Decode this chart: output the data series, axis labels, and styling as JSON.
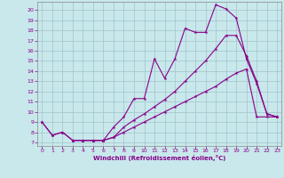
{
  "xlabel": "Windchill (Refroidissement éolien,°C)",
  "bg_color": "#c8e8ec",
  "line_color": "#880088",
  "grid_color": "#a0c4c8",
  "xlim_min": -0.5,
  "xlim_max": 23.4,
  "ylim_min": 6.65,
  "ylim_max": 20.8,
  "yticks": [
    7,
    8,
    9,
    10,
    11,
    12,
    13,
    14,
    15,
    16,
    17,
    18,
    19,
    20
  ],
  "xticks": [
    0,
    1,
    2,
    3,
    4,
    5,
    6,
    7,
    8,
    9,
    10,
    11,
    12,
    13,
    14,
    15,
    16,
    17,
    18,
    19,
    20,
    21,
    22,
    23
  ],
  "line1_x": [
    0,
    1,
    2,
    3,
    4,
    5,
    6,
    7,
    8,
    9,
    10,
    11,
    12,
    13,
    14,
    15,
    16,
    17,
    18,
    19,
    20,
    21,
    22,
    23
  ],
  "line1_y": [
    9.0,
    7.7,
    8.0,
    7.2,
    7.2,
    7.2,
    7.2,
    8.5,
    9.5,
    11.3,
    11.3,
    15.2,
    13.3,
    15.2,
    18.2,
    17.8,
    17.8,
    20.5,
    20.1,
    19.2,
    15.2,
    12.8,
    9.8,
    9.5
  ],
  "line2_x": [
    0,
    1,
    2,
    3,
    4,
    5,
    6,
    7,
    8,
    9,
    10,
    11,
    12,
    13,
    14,
    15,
    16,
    17,
    18,
    19,
    20,
    21,
    22,
    23
  ],
  "line2_y": [
    9.0,
    7.7,
    8.0,
    7.2,
    7.2,
    7.2,
    7.2,
    7.5,
    8.5,
    9.2,
    9.8,
    10.5,
    11.2,
    12.0,
    13.0,
    14.0,
    15.0,
    16.2,
    17.5,
    17.5,
    15.5,
    13.0,
    9.8,
    9.5
  ],
  "line3_x": [
    3,
    4,
    5,
    6,
    7,
    8,
    9,
    10,
    11,
    12,
    13,
    14,
    15,
    16,
    17,
    18,
    19,
    20,
    21,
    22,
    23
  ],
  "line3_y": [
    7.2,
    7.2,
    7.2,
    7.2,
    7.5,
    8.0,
    8.5,
    9.0,
    9.5,
    10.0,
    10.5,
    11.0,
    11.5,
    12.0,
    12.5,
    13.2,
    13.8,
    14.2,
    9.5,
    9.5,
    9.5
  ]
}
